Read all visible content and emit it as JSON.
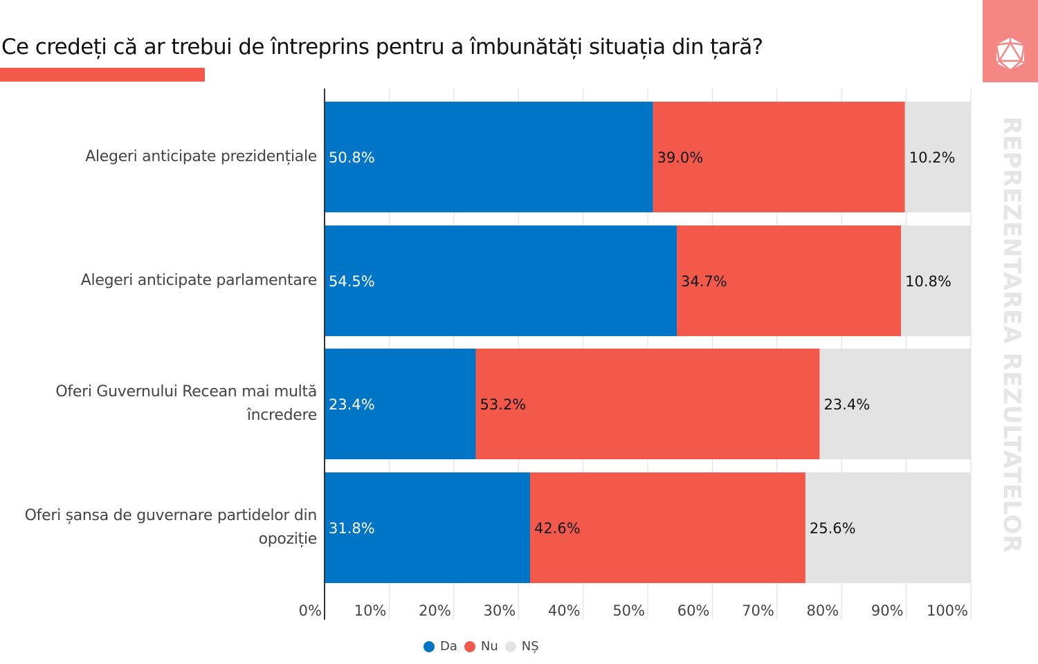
{
  "header": {
    "title": "Ce credeți că ar trebui de întreprins pentru a îmbunătăți situația din țară?",
    "side_label": "REPREZENTAREA REZULTATELOR",
    "logo_icon": "d20-polyhedron-icon"
  },
  "colors": {
    "Da": "#0074c5",
    "Nu": "#f2594b",
    "NS": "#e3e3e3",
    "accent": "#f2594b",
    "brand_bg": "#f48684"
  },
  "chart_data": {
    "type": "bar",
    "orientation": "horizontal",
    "stacked": true,
    "title": "Ce credeți că ar trebui de întreprins pentru a îmbunătăți situația din țară?",
    "xlabel": "",
    "ylabel": "",
    "xlim": [
      0,
      100
    ],
    "grid": true,
    "legend_position": "bottom-center",
    "categories": [
      "Alegeri anticipate prezidențiale",
      "Alegeri anticipate parlamentare",
      "Oferi Guvernului Recean mai multă încredere",
      "Oferi șansa de guvernare partidelor din opoziție"
    ],
    "series": [
      {
        "name": "Da",
        "values": [
          50.8,
          54.5,
          23.4,
          31.8
        ],
        "labels": [
          "50.8%",
          "54.5%",
          "23.4%",
          "31.8%"
        ]
      },
      {
        "name": "Nu",
        "values": [
          39.0,
          34.7,
          53.2,
          42.6
        ],
        "labels": [
          "39.0%",
          "34.7%",
          "53.2%",
          "42.6%"
        ]
      },
      {
        "name": "NȘ",
        "values": [
          10.2,
          10.8,
          23.4,
          25.6
        ],
        "labels": [
          "10.2%",
          "10.8%",
          "23.4%",
          "25.6%"
        ]
      }
    ],
    "xticks": [
      "0%",
      "10%",
      "20%",
      "30%",
      "40%",
      "50%",
      "60%",
      "70%",
      "80%",
      "90%",
      "100%"
    ]
  },
  "category_lines": [
    [
      "Alegeri anticipate prezidențiale"
    ],
    [
      "Alegeri anticipate parlamentare"
    ],
    [
      "Oferi Guvernului Recean mai multă",
      "încredere"
    ],
    [
      "Oferi șansa de guvernare partidelor din",
      "opoziție"
    ]
  ],
  "legend": [
    {
      "label": "Da"
    },
    {
      "label": "Nu"
    },
    {
      "label": "NȘ"
    }
  ]
}
